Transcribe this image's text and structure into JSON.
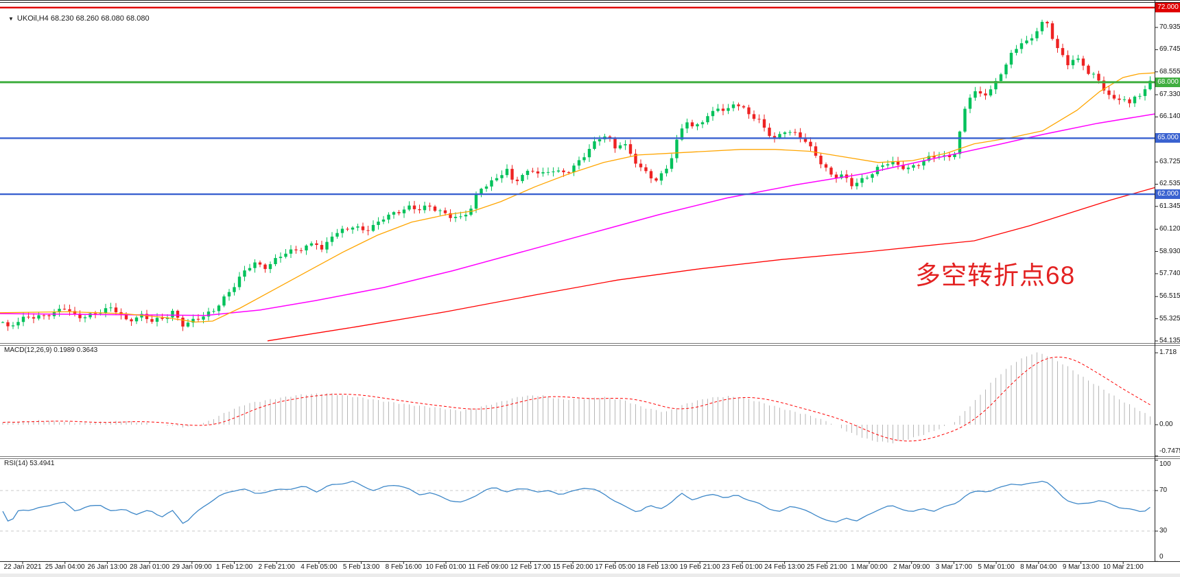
{
  "icons": {
    "dropdown_arrow": "▼"
  },
  "header": {
    "symbol_line": "UKOil,H4 68.230 68.260 68.080 68.080"
  },
  "main_chart": {
    "annotation": "多空转折点68"
  },
  "macd": {
    "label": "MACD(12,26,9) 0.1989 0.3643"
  },
  "rsi": {
    "label": "RSI(14) 53.4941"
  },
  "colors": {
    "bull": "#00c15a",
    "bear": "#ee2222",
    "ma_fast": "#ffa500",
    "ma_mid": "#ff00ff",
    "ma_slow": "#ff0000",
    "hline_green": "#3fae3f",
    "hline_blue": "#3a62d0",
    "hline_red": "#e00000",
    "macd_hist": "#b6b6b6",
    "macd_signal": "#ff0000",
    "rsi_line": "#3d87c8",
    "rsi_level": "#c9c9c9",
    "annotation": "#e32222",
    "axis_text": "#111111"
  },
  "chart_data": {
    "type": "candlestick",
    "symbol": "UKOil",
    "timeframe": "H4",
    "last_quote": {
      "open": 68.23,
      "high": 68.26,
      "low": 68.08,
      "close": 68.08
    },
    "ylim": [
      54.135,
      72.1
    ],
    "price_axis_ticks": [
      "70.935",
      "69.745",
      "68.555",
      "67.330",
      "66.140",
      "63.725",
      "62.535",
      "61.345",
      "60.120",
      "58.930",
      "57.740",
      "56.515",
      "55.325",
      "54.135"
    ],
    "hlines": [
      {
        "price": 72.0,
        "label": "72.000",
        "style": "red",
        "thickness": 2.5
      },
      {
        "price": 68.0,
        "label": "68.000",
        "style": "green",
        "thickness": 3
      },
      {
        "price": 65.0,
        "label": "65.000",
        "style": "blue",
        "thickness": 2.4
      },
      {
        "price": 62.0,
        "label": "62.000",
        "style": "blue",
        "thickness": 2.4
      }
    ],
    "price_path": [
      [
        0,
        55.4
      ],
      [
        10,
        54.75
      ],
      [
        22,
        55.05
      ],
      [
        40,
        55.45
      ],
      [
        60,
        55.5
      ],
      [
        80,
        55.6
      ],
      [
        95,
        55.9
      ],
      [
        112,
        55.45
      ],
      [
        132,
        55.55
      ],
      [
        150,
        55.7
      ],
      [
        165,
        55.9
      ],
      [
        185,
        55.25
      ],
      [
        205,
        55.5
      ],
      [
        222,
        55.15
      ],
      [
        238,
        55.35
      ],
      [
        252,
        55.75
      ],
      [
        268,
        54.95
      ],
      [
        282,
        55.2
      ],
      [
        298,
        55.45
      ],
      [
        312,
        55.85
      ],
      [
        326,
        56.45
      ],
      [
        342,
        57.1
      ],
      [
        356,
        57.8
      ],
      [
        370,
        58.35
      ],
      [
        385,
        58.1
      ],
      [
        400,
        58.45
      ],
      [
        415,
        58.8
      ],
      [
        430,
        58.95
      ],
      [
        445,
        59.2
      ],
      [
        460,
        59.5
      ],
      [
        470,
        58.95
      ],
      [
        484,
        59.75
      ],
      [
        500,
        60.05
      ],
      [
        515,
        60.35
      ],
      [
        532,
        60.05
      ],
      [
        548,
        60.3
      ],
      [
        562,
        60.8
      ],
      [
        578,
        61.05
      ],
      [
        594,
        61.35
      ],
      [
        610,
        61.15
      ],
      [
        626,
        61.3
      ],
      [
        642,
        61.1
      ],
      [
        658,
        60.85
      ],
      [
        672,
        60.7
      ],
      [
        686,
        61.15
      ],
      [
        698,
        62.25
      ],
      [
        712,
        62.6
      ],
      [
        726,
        62.95
      ],
      [
        738,
        63.35
      ],
      [
        748,
        62.55
      ],
      [
        762,
        63.0
      ],
      [
        776,
        63.35
      ],
      [
        790,
        63.1
      ],
      [
        804,
        63.3
      ],
      [
        818,
        63.05
      ],
      [
        832,
        63.3
      ],
      [
        846,
        63.9
      ],
      [
        860,
        64.5
      ],
      [
        872,
        64.95
      ],
      [
        884,
        65.1
      ],
      [
        896,
        64.45
      ],
      [
        908,
        64.85
      ],
      [
        920,
        64.15
      ],
      [
        932,
        63.45
      ],
      [
        944,
        63.05
      ],
      [
        956,
        62.65
      ],
      [
        968,
        63.2
      ],
      [
        980,
        64.1
      ],
      [
        990,
        65.3
      ],
      [
        1000,
        66.0
      ],
      [
        1010,
        65.45
      ],
      [
        1022,
        65.85
      ],
      [
        1034,
        66.2
      ],
      [
        1046,
        66.75
      ],
      [
        1058,
        66.4
      ],
      [
        1070,
        66.9
      ],
      [
        1082,
        66.55
      ],
      [
        1094,
        66.2
      ],
      [
        1106,
        66.0
      ],
      [
        1118,
        65.4
      ],
      [
        1130,
        64.95
      ],
      [
        1144,
        65.35
      ],
      [
        1158,
        65.2
      ],
      [
        1172,
        65.0
      ],
      [
        1186,
        64.3
      ],
      [
        1200,
        63.5
      ],
      [
        1214,
        62.85
      ],
      [
        1228,
        63.0
      ],
      [
        1242,
        62.55
      ],
      [
        1256,
        62.8
      ],
      [
        1270,
        63.05
      ],
      [
        1284,
        63.45
      ],
      [
        1298,
        63.75
      ],
      [
        1312,
        63.55
      ],
      [
        1326,
        63.4
      ],
      [
        1340,
        63.6
      ],
      [
        1354,
        63.9
      ],
      [
        1368,
        64.1
      ],
      [
        1382,
        64.0
      ],
      [
        1394,
        64.35
      ],
      [
        1404,
        66.2
      ],
      [
        1412,
        67.15
      ],
      [
        1422,
        67.45
      ],
      [
        1432,
        67.25
      ],
      [
        1442,
        67.6
      ],
      [
        1452,
        68.05
      ],
      [
        1462,
        68.7
      ],
      [
        1472,
        69.35
      ],
      [
        1482,
        69.75
      ],
      [
        1492,
        70.3
      ],
      [
        1500,
        70.05
      ],
      [
        1508,
        70.65
      ],
      [
        1516,
        71.2
      ],
      [
        1524,
        71.35
      ],
      [
        1532,
        70.55
      ],
      [
        1540,
        69.9
      ],
      [
        1548,
        69.35
      ],
      [
        1556,
        68.9
      ],
      [
        1566,
        69.35
      ],
      [
        1576,
        69.1
      ],
      [
        1586,
        68.6
      ],
      [
        1596,
        68.35
      ],
      [
        1606,
        67.75
      ],
      [
        1616,
        67.25
      ],
      [
        1626,
        66.95
      ],
      [
        1636,
        67.3
      ],
      [
        1646,
        66.8
      ],
      [
        1656,
        67.45
      ],
      [
        1666,
        67.25
      ],
      [
        1676,
        68.08
      ]
    ],
    "ma_orange": [
      [
        0,
        55.65
      ],
      [
        100,
        55.7
      ],
      [
        180,
        55.6
      ],
      [
        240,
        55.4
      ],
      [
        285,
        55.15
      ],
      [
        310,
        55.2
      ],
      [
        350,
        55.9
      ],
      [
        400,
        56.9
      ],
      [
        450,
        57.9
      ],
      [
        500,
        58.9
      ],
      [
        550,
        59.8
      ],
      [
        600,
        60.5
      ],
      [
        650,
        60.9
      ],
      [
        690,
        61.1
      ],
      [
        730,
        61.6
      ],
      [
        780,
        62.4
      ],
      [
        830,
        63.1
      ],
      [
        880,
        63.7
      ],
      [
        930,
        64.1
      ],
      [
        980,
        64.2
      ],
      [
        1030,
        64.3
      ],
      [
        1080,
        64.4
      ],
      [
        1130,
        64.4
      ],
      [
        1180,
        64.3
      ],
      [
        1230,
        64.0
      ],
      [
        1280,
        63.7
      ],
      [
        1330,
        63.8
      ],
      [
        1380,
        64.2
      ],
      [
        1420,
        64.7
      ],
      [
        1470,
        65.0
      ],
      [
        1520,
        65.4
      ],
      [
        1570,
        66.5
      ],
      [
        1603,
        67.5
      ],
      [
        1637,
        68.25
      ],
      [
        1660,
        68.45
      ],
      [
        1683,
        68.5
      ]
    ],
    "ma_magenta": [
      [
        0,
        55.6
      ],
      [
        150,
        55.55
      ],
      [
        300,
        55.5
      ],
      [
        380,
        55.8
      ],
      [
        460,
        56.3
      ],
      [
        560,
        57.0
      ],
      [
        660,
        57.9
      ],
      [
        760,
        58.9
      ],
      [
        860,
        59.9
      ],
      [
        960,
        60.9
      ],
      [
        1060,
        61.8
      ],
      [
        1160,
        62.5
      ],
      [
        1260,
        63.1
      ],
      [
        1360,
        63.9
      ],
      [
        1460,
        64.7
      ],
      [
        1520,
        65.2
      ],
      [
        1600,
        65.8
      ],
      [
        1683,
        66.3
      ]
    ],
    "ma_red": [
      [
        390,
        54.14
      ],
      [
        520,
        54.9
      ],
      [
        650,
        55.7
      ],
      [
        780,
        56.6
      ],
      [
        900,
        57.4
      ],
      [
        1020,
        58.0
      ],
      [
        1140,
        58.5
      ],
      [
        1260,
        58.9
      ],
      [
        1340,
        59.2
      ],
      [
        1420,
        59.5
      ],
      [
        1500,
        60.3
      ],
      [
        1560,
        61.0
      ],
      [
        1620,
        61.7
      ],
      [
        1683,
        62.35
      ]
    ],
    "macd": {
      "main_last": 0.1989,
      "signal_last": 0.3643,
      "axis_ticks": [
        {
          "v": 1.718,
          "label": "1.718"
        },
        {
          "v": 0,
          "label": "0.00"
        },
        {
          "v": -0.7475,
          "label": "-0.7475"
        }
      ],
      "values": [
        [
          0,
          0.05
        ],
        [
          60,
          0.1
        ],
        [
          120,
          0.04
        ],
        [
          180,
          0.09
        ],
        [
          240,
          0.0
        ],
        [
          270,
          -0.06
        ],
        [
          300,
          0.05
        ],
        [
          330,
          0.3
        ],
        [
          360,
          0.5
        ],
        [
          400,
          0.62
        ],
        [
          440,
          0.72
        ],
        [
          480,
          0.75
        ],
        [
          520,
          0.66
        ],
        [
          560,
          0.56
        ],
        [
          600,
          0.47
        ],
        [
          640,
          0.4
        ],
        [
          670,
          0.33
        ],
        [
          700,
          0.42
        ],
        [
          730,
          0.55
        ],
        [
          760,
          0.68
        ],
        [
          790,
          0.7
        ],
        [
          820,
          0.6
        ],
        [
          850,
          0.62
        ],
        [
          880,
          0.66
        ],
        [
          910,
          0.58
        ],
        [
          940,
          0.4
        ],
        [
          970,
          0.3
        ],
        [
          1000,
          0.5
        ],
        [
          1030,
          0.63
        ],
        [
          1060,
          0.68
        ],
        [
          1090,
          0.62
        ],
        [
          1120,
          0.48
        ],
        [
          1150,
          0.34
        ],
        [
          1180,
          0.22
        ],
        [
          1210,
          0.05
        ],
        [
          1240,
          -0.2
        ],
        [
          1270,
          -0.38
        ],
        [
          1300,
          -0.44
        ],
        [
          1330,
          -0.32
        ],
        [
          1360,
          -0.16
        ],
        [
          1390,
          0.05
        ],
        [
          1420,
          0.55
        ],
        [
          1450,
          1.1
        ],
        [
          1480,
          1.5
        ],
        [
          1505,
          1.7
        ],
        [
          1515,
          1.72
        ],
        [
          1530,
          1.62
        ],
        [
          1555,
          1.4
        ],
        [
          1580,
          1.12
        ],
        [
          1605,
          0.88
        ],
        [
          1630,
          0.62
        ],
        [
          1655,
          0.4
        ],
        [
          1676,
          0.2
        ]
      ]
    },
    "rsi_data": {
      "last": 53.4941,
      "levels": [
        70,
        30
      ],
      "axis_ticks": [
        {
          "v": 100,
          "label": "100"
        },
        {
          "v": 70,
          "label": "70"
        },
        {
          "v": 30,
          "label": "30"
        },
        {
          "v": 0,
          "label": "0"
        }
      ],
      "values": [
        [
          0,
          55
        ],
        [
          14,
          36
        ],
        [
          28,
          52
        ],
        [
          45,
          50
        ],
        [
          62,
          54
        ],
        [
          80,
          57
        ],
        [
          95,
          58
        ],
        [
          110,
          50
        ],
        [
          128,
          54
        ],
        [
          146,
          56
        ],
        [
          164,
          49
        ],
        [
          182,
          52
        ],
        [
          200,
          46
        ],
        [
          218,
          51
        ],
        [
          236,
          44
        ],
        [
          252,
          50
        ],
        [
          268,
          37
        ],
        [
          284,
          47
        ],
        [
          300,
          56
        ],
        [
          318,
          64
        ],
        [
          336,
          69
        ],
        [
          354,
          72
        ],
        [
          372,
          67
        ],
        [
          390,
          69
        ],
        [
          408,
          71
        ],
        [
          426,
          72
        ],
        [
          444,
          74
        ],
        [
          462,
          69
        ],
        [
          480,
          75
        ],
        [
          498,
          77
        ],
        [
          514,
          79
        ],
        [
          530,
          74
        ],
        [
          546,
          70
        ],
        [
          562,
          74
        ],
        [
          578,
          76
        ],
        [
          594,
          72
        ],
        [
          610,
          66
        ],
        [
          626,
          68
        ],
        [
          642,
          64
        ],
        [
          658,
          60
        ],
        [
          674,
          58
        ],
        [
          690,
          64
        ],
        [
          706,
          70
        ],
        [
          722,
          73
        ],
        [
          738,
          69
        ],
        [
          754,
          71
        ],
        [
          770,
          72
        ],
        [
          786,
          68
        ],
        [
          802,
          70
        ],
        [
          818,
          66
        ],
        [
          834,
          69
        ],
        [
          850,
          73
        ],
        [
          866,
          71
        ],
        [
          882,
          66
        ],
        [
          898,
          59
        ],
        [
          914,
          53
        ],
        [
          930,
          49
        ],
        [
          946,
          55
        ],
        [
          962,
          52
        ],
        [
          978,
          58
        ],
        [
          994,
          67
        ],
        [
          1010,
          61
        ],
        [
          1026,
          64
        ],
        [
          1042,
          67
        ],
        [
          1058,
          62
        ],
        [
          1074,
          66
        ],
        [
          1090,
          61
        ],
        [
          1106,
          57
        ],
        [
          1122,
          52
        ],
        [
          1138,
          49
        ],
        [
          1154,
          55
        ],
        [
          1170,
          52
        ],
        [
          1186,
          46
        ],
        [
          1202,
          42
        ],
        [
          1218,
          38
        ],
        [
          1234,
          43
        ],
        [
          1250,
          40
        ],
        [
          1266,
          46
        ],
        [
          1282,
          52
        ],
        [
          1298,
          55
        ],
        [
          1314,
          52
        ],
        [
          1330,
          49
        ],
        [
          1346,
          52
        ],
        [
          1362,
          50
        ],
        [
          1378,
          54
        ],
        [
          1394,
          58
        ],
        [
          1410,
          66
        ],
        [
          1426,
          70
        ],
        [
          1442,
          69
        ],
        [
          1458,
          73
        ],
        [
          1474,
          77
        ],
        [
          1490,
          75
        ],
        [
          1506,
          78
        ],
        [
          1522,
          80
        ],
        [
          1538,
          71
        ],
        [
          1554,
          61
        ],
        [
          1570,
          56
        ],
        [
          1586,
          58
        ],
        [
          1602,
          60
        ],
        [
          1618,
          57
        ],
        [
          1634,
          53
        ],
        [
          1650,
          51
        ],
        [
          1666,
          49
        ],
        [
          1676,
          53.5
        ]
      ]
    },
    "time_labels": [
      "22 Jan 2021",
      "25 Jan 04:00",
      "26 Jan 13:00",
      "28 Jan 01:00",
      "29 Jan 09:00",
      "1 Feb 12:00",
      "2 Feb 21:00",
      "4 Feb 05:00",
      "5 Feb 13:00",
      "8 Feb 16:00",
      "10 Feb 01:00",
      "11 Feb 09:00",
      "12 Feb 17:00",
      "15 Feb 20:00",
      "17 Feb 05:00",
      "18 Feb 13:00",
      "19 Feb 21:00",
      "23 Feb 01:00",
      "24 Feb 13:00",
      "25 Feb 21:00",
      "1 Mar 00:00",
      "2 Mar 09:00",
      "3 Mar 17:00",
      "5 Mar 01:00",
      "8 Mar 04:00",
      "9 Mar 13:00",
      "10 Mar 21:00"
    ]
  }
}
